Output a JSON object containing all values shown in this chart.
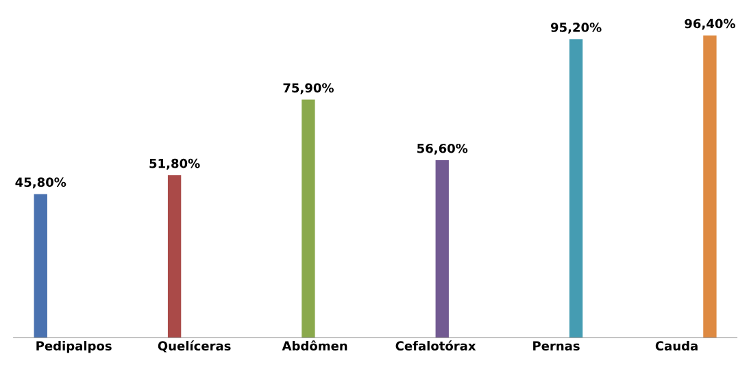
{
  "chart_data": {
    "type": "bar",
    "categories": [
      "Pedipalpos",
      "Quelíceras",
      "Abdômen",
      "Cefalotórax",
      "Pernas",
      "Cauda"
    ],
    "series": [
      {
        "color": "#4a72b0",
        "values": [
          45.8,
          null,
          null,
          null,
          null,
          null
        ],
        "value_labels": [
          "45,80%",
          null,
          null,
          null,
          null,
          null
        ]
      },
      {
        "color": "#aa4a48",
        "values": [
          null,
          51.8,
          null,
          null,
          null,
          null
        ],
        "value_labels": [
          null,
          "51,80%",
          null,
          null,
          null,
          null
        ]
      },
      {
        "color": "#8aa94c",
        "values": [
          null,
          null,
          75.9,
          null,
          null,
          null
        ],
        "value_labels": [
          null,
          null,
          "75,90%",
          null,
          null,
          null
        ]
      },
      {
        "color": "#725a92",
        "values": [
          null,
          null,
          null,
          56.6,
          null,
          null
        ],
        "value_labels": [
          null,
          null,
          null,
          "56,60%",
          null,
          null
        ]
      },
      {
        "color": "#459cb2",
        "values": [
          null,
          null,
          null,
          null,
          95.2,
          null
        ],
        "value_labels": [
          null,
          null,
          null,
          null,
          "95,20%",
          null
        ]
      },
      {
        "color": "#de8a42",
        "values": [
          null,
          null,
          null,
          null,
          null,
          96.4
        ],
        "value_labels": [
          null,
          null,
          null,
          null,
          null,
          "96,40%"
        ]
      }
    ],
    "tick_labels": "x",
    "grid": false,
    "legend": false
  }
}
